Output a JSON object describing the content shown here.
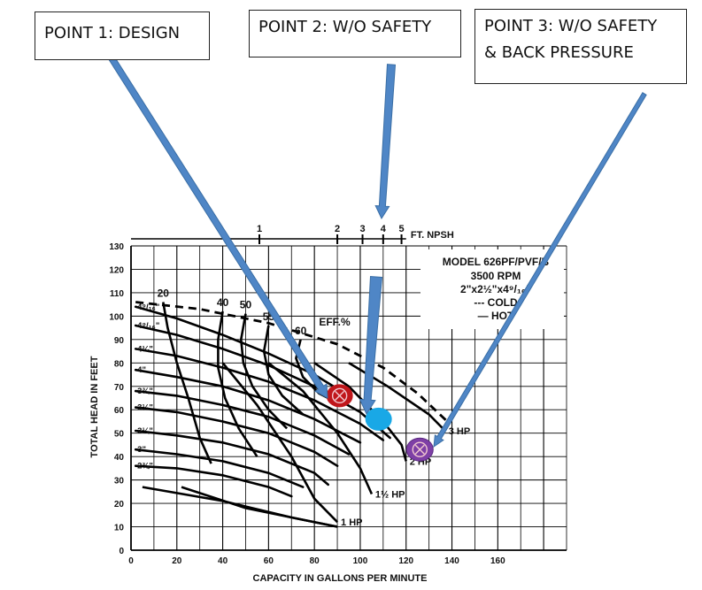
{
  "callouts": [
    {
      "text": "POINT 1: DESIGN"
    },
    {
      "text": "POINT 2: W/O SAFETY"
    },
    {
      "text": "POINT 3: W/O SAFETY\n& BACK PRESSURE"
    }
  ],
  "colors": {
    "point1": "#c0161b",
    "point2": "#19a8e6",
    "point3": "#7e3fa6",
    "arrow": "#4f86c6",
    "arrow_stroke": "#3a6ea5"
  },
  "chart_data": {
    "type": "line",
    "xlabel": "CAPACITY IN GALLONS PER MINUTE",
    "ylabel": "TOTAL HEAD IN FEET",
    "xlim": [
      0,
      190
    ],
    "ylim": [
      0,
      130
    ],
    "x_ticks": [
      0,
      20,
      40,
      60,
      80,
      100,
      120,
      140,
      160
    ],
    "y_ticks": [
      0,
      10,
      20,
      30,
      40,
      50,
      60,
      70,
      80,
      90,
      100,
      110,
      120,
      130
    ],
    "grid": true,
    "info_box": {
      "lines": [
        "MODEL 626PF/PVF/B",
        "3500 RPM",
        "2\"x2½\"x4⁹/₁₆\"",
        "--- COLD",
        "— HOT"
      ]
    },
    "npsh": {
      "label": "FT. NPSH",
      "marks": [
        {
          "label": "1",
          "x": 56
        },
        {
          "label": "2",
          "x": 90
        },
        {
          "label": "3",
          "x": 101
        },
        {
          "label": "4",
          "x": 110
        },
        {
          "label": "5",
          "x": 118
        }
      ]
    },
    "impeller_curves": [
      {
        "name": "4⁹/₁₆\"",
        "points": [
          [
            2,
            104
          ],
          [
            20,
            99
          ],
          [
            40,
            92
          ],
          [
            60,
            84
          ],
          [
            80,
            75
          ],
          [
            95,
            66
          ]
        ]
      },
      {
        "name": "4⁹/₁₆\"",
        "points": [
          [
            2,
            96
          ],
          [
            20,
            92
          ],
          [
            40,
            86
          ],
          [
            60,
            79
          ],
          [
            80,
            70
          ],
          [
            100,
            59
          ],
          [
            113,
            48
          ]
        ]
      },
      {
        "name": "4¼\"",
        "points": [
          [
            2,
            86
          ],
          [
            20,
            83
          ],
          [
            40,
            78
          ],
          [
            60,
            72
          ],
          [
            80,
            64
          ],
          [
            100,
            54
          ],
          [
            110,
            47
          ]
        ]
      },
      {
        "name": "4\"",
        "points": [
          [
            2,
            77
          ],
          [
            20,
            74
          ],
          [
            40,
            70
          ],
          [
            60,
            64
          ],
          [
            80,
            56
          ],
          [
            100,
            46
          ]
        ]
      },
      {
        "name": "3¾\"",
        "points": [
          [
            2,
            68
          ],
          [
            20,
            66
          ],
          [
            40,
            62
          ],
          [
            60,
            57
          ],
          [
            80,
            49
          ],
          [
            95,
            41
          ]
        ]
      },
      {
        "name": "3½\"",
        "points": [
          [
            2,
            61
          ],
          [
            20,
            59
          ],
          [
            40,
            55
          ],
          [
            60,
            50
          ],
          [
            80,
            42
          ],
          [
            90,
            36
          ]
        ]
      },
      {
        "name": "3¼\"",
        "points": [
          [
            2,
            51
          ],
          [
            20,
            49
          ],
          [
            40,
            46
          ],
          [
            60,
            41
          ],
          [
            80,
            33
          ],
          [
            86,
            28
          ]
        ]
      },
      {
        "name": "3\"",
        "points": [
          [
            2,
            43
          ],
          [
            20,
            41
          ],
          [
            40,
            38
          ],
          [
            60,
            33
          ],
          [
            75,
            27
          ]
        ]
      },
      {
        "name": "2¾\"",
        "points": [
          [
            2,
            36
          ],
          [
            20,
            35
          ],
          [
            40,
            32
          ],
          [
            60,
            27
          ],
          [
            70,
            23
          ]
        ]
      }
    ],
    "cold_curve": {
      "points": [
        [
          2,
          106
        ],
        [
          30,
          103
        ],
        [
          60,
          97
        ],
        [
          90,
          88
        ],
        [
          110,
          78
        ],
        [
          125,
          67
        ],
        [
          138,
          55
        ]
      ]
    },
    "efficiency_curves": [
      {
        "label": "20",
        "points": [
          [
            14,
            106
          ],
          [
            16,
            95
          ],
          [
            20,
            80
          ],
          [
            25,
            65
          ],
          [
            30,
            48
          ],
          [
            35,
            37
          ]
        ]
      },
      {
        "label": "40",
        "points": [
          [
            40,
            102
          ],
          [
            38,
            90
          ],
          [
            38,
            78
          ],
          [
            41,
            65
          ],
          [
            47,
            52
          ],
          [
            55,
            40
          ]
        ]
      },
      {
        "label": "50",
        "points": [
          [
            50,
            101
          ],
          [
            48,
            90
          ],
          [
            49,
            80
          ],
          [
            53,
            70
          ],
          [
            60,
            60
          ],
          [
            68,
            52
          ]
        ]
      },
      {
        "label": "55",
        "points": [
          [
            60,
            96
          ],
          [
            58,
            85
          ],
          [
            60,
            75
          ],
          [
            66,
            66
          ],
          [
            75,
            58
          ]
        ]
      },
      {
        "label": "60",
        "points": [
          [
            74,
            90
          ],
          [
            72,
            82
          ],
          [
            75,
            74
          ],
          [
            82,
            67
          ],
          [
            92,
            62
          ]
        ]
      }
    ],
    "eff_label": "EFF.%",
    "hp_curves": [
      {
        "label": "3 HP",
        "points": [
          [
            95,
            80
          ],
          [
            112,
            70
          ],
          [
            130,
            58
          ],
          [
            137,
            51
          ]
        ]
      },
      {
        "label": "2 HP",
        "points": [
          [
            80,
            80
          ],
          [
            95,
            70
          ],
          [
            110,
            55
          ],
          [
            118,
            45
          ],
          [
            120,
            38
          ]
        ]
      },
      {
        "label": "1½ HP",
        "points": [
          [
            60,
            80
          ],
          [
            75,
            68
          ],
          [
            90,
            50
          ],
          [
            100,
            35
          ],
          [
            105,
            24
          ]
        ]
      },
      {
        "label": "1 HP",
        "points": [
          [
            40,
            80
          ],
          [
            55,
            62
          ],
          [
            70,
            40
          ],
          [
            80,
            22
          ],
          [
            90,
            12
          ]
        ]
      }
    ],
    "system_curves": [
      {
        "points": [
          [
            5,
            27
          ],
          [
            40,
            21
          ],
          [
            70,
            14
          ],
          [
            90,
            10
          ]
        ]
      },
      {
        "points": [
          [
            22,
            27
          ],
          [
            50,
            18
          ],
          [
            75,
            13
          ],
          [
            90,
            10
          ]
        ]
      }
    ],
    "points": [
      {
        "name": "POINT 1: DESIGN",
        "x": 91,
        "y": 66
      },
      {
        "name": "POINT 2: W/O SAFETY",
        "x": 108,
        "y": 56
      },
      {
        "name": "POINT 3: W/O SAFETY & BACK PRESSURE",
        "x": 126,
        "y": 43
      }
    ]
  }
}
